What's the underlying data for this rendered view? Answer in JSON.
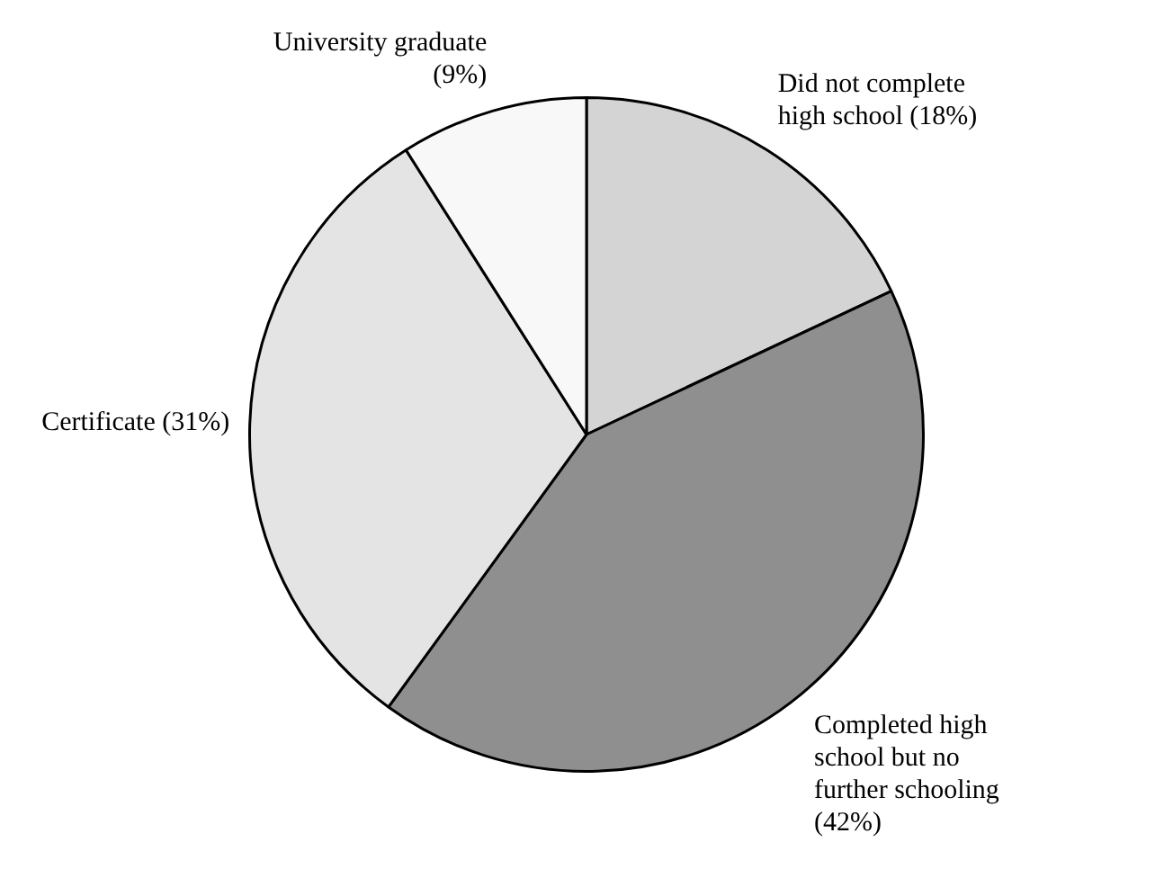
{
  "chart_data": {
    "type": "pie",
    "categories": [
      "Did not complete high school",
      "Completed high school but no further schooling",
      "Certificate",
      "University graduate"
    ],
    "values": [
      18,
      42,
      31,
      9
    ],
    "value_labels": [
      "(18%)",
      "(42%)",
      "(31%)",
      "(9%)"
    ],
    "colors": [
      "#d4d4d4",
      "#8f8f8f",
      "#e4e4e4",
      "#f8f8f8"
    ],
    "legend": false
  }
}
